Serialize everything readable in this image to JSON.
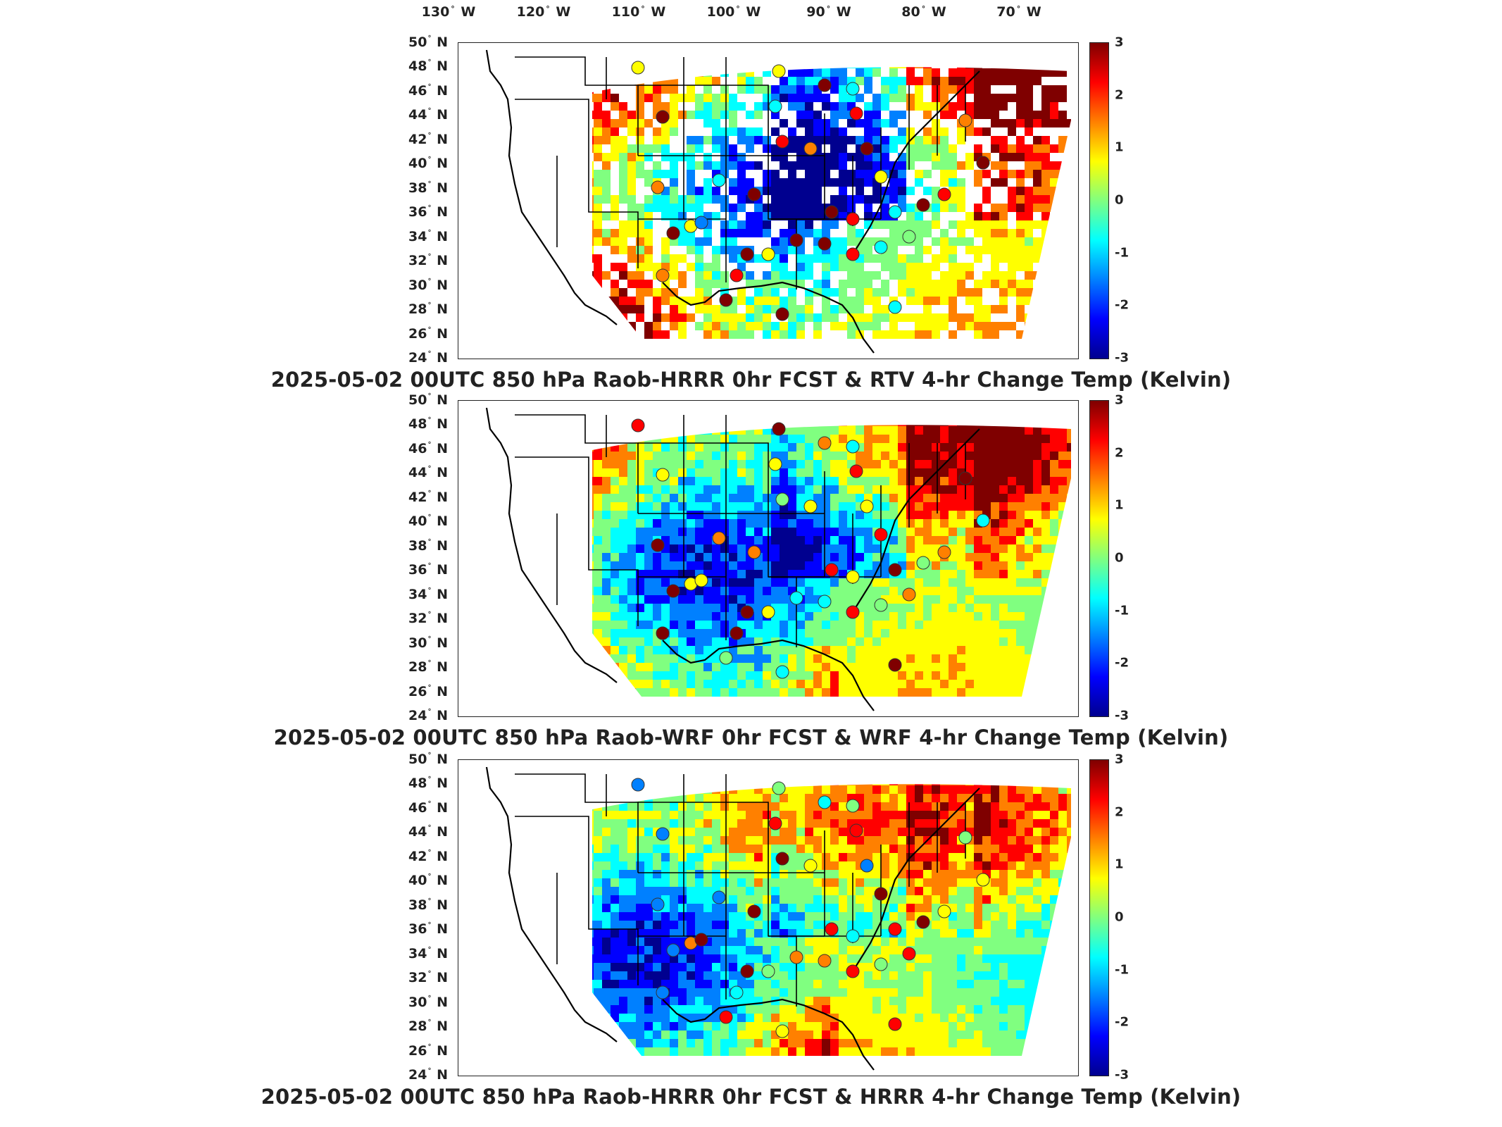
{
  "longitude_labels": [
    {
      "deg": "130",
      "dir": "W"
    },
    {
      "deg": "120",
      "dir": "W"
    },
    {
      "deg": "110",
      "dir": "W"
    },
    {
      "deg": "100",
      "dir": "W"
    },
    {
      "deg": "90",
      "dir": "W"
    },
    {
      "deg": "80",
      "dir": "W"
    },
    {
      "deg": "70",
      "dir": "W"
    }
  ],
  "latitude_labels": [
    {
      "deg": "50",
      "dir": "N"
    },
    {
      "deg": "48",
      "dir": "N"
    },
    {
      "deg": "46",
      "dir": "N"
    },
    {
      "deg": "44",
      "dir": "N"
    },
    {
      "deg": "42",
      "dir": "N"
    },
    {
      "deg": "40",
      "dir": "N"
    },
    {
      "deg": "38",
      "dir": "N"
    },
    {
      "deg": "36",
      "dir": "N"
    },
    {
      "deg": "34",
      "dir": "N"
    },
    {
      "deg": "32",
      "dir": "N"
    },
    {
      "deg": "30",
      "dir": "N"
    },
    {
      "deg": "28",
      "dir": "N"
    },
    {
      "deg": "26",
      "dir": "N"
    },
    {
      "deg": "24",
      "dir": "N"
    }
  ],
  "colorbar": {
    "ticks": [
      "3",
      "2",
      "1",
      "0",
      "-1",
      "-2",
      "-3"
    ],
    "range": [
      -3,
      3
    ],
    "colors": [
      "#7f0000",
      "#ff0000",
      "#ff8000",
      "#ffff00",
      "#80ff80",
      "#00ffff",
      "#0080ff",
      "#0000ff",
      "#00008f"
    ]
  },
  "panels": [
    {
      "title": "2025-05-02 00UTC 850 hPa Raob-HRRR 0hr FCST & RTV 4-hr Change Temp (Kelvin)"
    },
    {
      "title": "2025-05-02 00UTC 850 hPa Raob-WRF 0hr FCST & WRF 4-hr Change Temp (Kelvin)"
    },
    {
      "title": "2025-05-02 00UTC 850 hPa Raob-HRRR 0hr FCST & HRRR 4-hr Change Temp (Kelvin)"
    }
  ]
}
